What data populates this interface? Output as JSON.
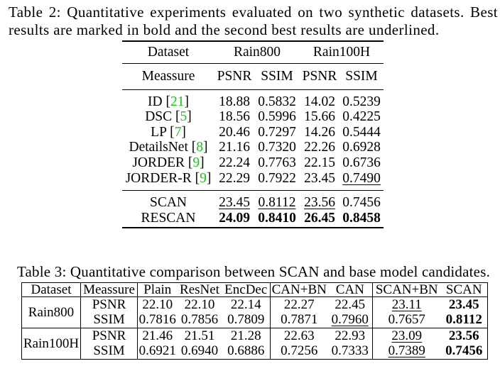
{
  "table2": {
    "caption_lines": [
      "Table 2: Quantitative experiments evaluated on two synthetic datasets. Best",
      "results are marked in bold and the second best results are underlined."
    ],
    "header": {
      "dataset_label": "Dataset",
      "datasets": [
        "Rain800",
        "Rain100H"
      ],
      "measure_label": "Meassure",
      "metrics": [
        "PSNR",
        "SSIM",
        "PSNR",
        "SSIM"
      ]
    },
    "cite_open": "[",
    "cite_close": "]",
    "cite_color": "#19c819",
    "groups": [
      [
        {
          "method": "ID",
          "cite": "21",
          "values": [
            {
              "v": "18.88"
            },
            {
              "v": "0.5832"
            },
            {
              "v": "14.02"
            },
            {
              "v": "0.5239"
            }
          ]
        },
        {
          "method": "DSC",
          "cite": "5",
          "values": [
            {
              "v": "18.56"
            },
            {
              "v": "0.5996"
            },
            {
              "v": "15.66"
            },
            {
              "v": "0.4225"
            }
          ]
        },
        {
          "method": "LP",
          "cite": "7",
          "values": [
            {
              "v": "20.46"
            },
            {
              "v": "0.7297"
            },
            {
              "v": "14.26"
            },
            {
              "v": "0.5444"
            }
          ]
        },
        {
          "method": "DetailsNet",
          "cite": "8",
          "values": [
            {
              "v": "21.16"
            },
            {
              "v": "0.7320"
            },
            {
              "v": "22.26"
            },
            {
              "v": "0.6928"
            }
          ]
        },
        {
          "method": "JORDER",
          "cite": "9",
          "values": [
            {
              "v": "22.24"
            },
            {
              "v": "0.7763"
            },
            {
              "v": "22.15"
            },
            {
              "v": "0.6736"
            }
          ]
        },
        {
          "method": "JORDER-R",
          "cite": "9",
          "values": [
            {
              "v": "22.29"
            },
            {
              "v": "0.7922"
            },
            {
              "v": "23.45"
            },
            {
              "v": "0.7490",
              "underline": true
            }
          ]
        }
      ],
      [
        {
          "method": "SCAN",
          "values": [
            {
              "v": "23.45",
              "underline": true
            },
            {
              "v": "0.8112",
              "underline": true
            },
            {
              "v": "23.56",
              "underline": true
            },
            {
              "v": "0.7456"
            }
          ]
        },
        {
          "method": "RESCAN",
          "values": [
            {
              "v": "24.09",
              "bold": true
            },
            {
              "v": "0.8410",
              "bold": true
            },
            {
              "v": "26.45",
              "bold": true
            },
            {
              "v": "0.8458",
              "bold": true
            }
          ]
        }
      ]
    ]
  },
  "table3": {
    "caption": "Table 3: Quantitative comparison between SCAN and base model candidates.",
    "columns": [
      "Dataset",
      "Meassure",
      "Plain",
      "ResNet",
      "EncDec",
      "CAN+BN",
      "CAN",
      "SCAN+BN",
      "SCAN"
    ],
    "datasets": [
      {
        "name": "Rain800",
        "rows": [
          {
            "measure": "PSNR",
            "values": [
              {
                "v": "22.10"
              },
              {
                "v": "22.10"
              },
              {
                "v": "22.14"
              },
              {
                "v": "22.27"
              },
              {
                "v": "22.45"
              },
              {
                "v": "23.11",
                "underline": true
              },
              {
                "v": "23.45",
                "bold": true
              }
            ]
          },
          {
            "measure": "SSIM",
            "values": [
              {
                "v": "0.7816"
              },
              {
                "v": "0.7856"
              },
              {
                "v": "0.7809"
              },
              {
                "v": "0.7871"
              },
              {
                "v": "0.7960",
                "underline": true
              },
              {
                "v": "0.7657"
              },
              {
                "v": "0.8112",
                "bold": true
              }
            ]
          }
        ]
      },
      {
        "name": "Rain100H",
        "rows": [
          {
            "measure": "PSNR",
            "values": [
              {
                "v": "21.46"
              },
              {
                "v": "21.51"
              },
              {
                "v": "21.28"
              },
              {
                "v": "22.63"
              },
              {
                "v": "22.93"
              },
              {
                "v": "23.09",
                "underline": true
              },
              {
                "v": "23.56",
                "bold": true
              }
            ]
          },
          {
            "measure": "SSIM",
            "values": [
              {
                "v": "0.6921"
              },
              {
                "v": "0.6940"
              },
              {
                "v": "0.6886"
              },
              {
                "v": "0.7256"
              },
              {
                "v": "0.7333"
              },
              {
                "v": "0.7389",
                "underline": true
              },
              {
                "v": "0.7456",
                "bold": true
              }
            ]
          }
        ]
      }
    ]
  }
}
